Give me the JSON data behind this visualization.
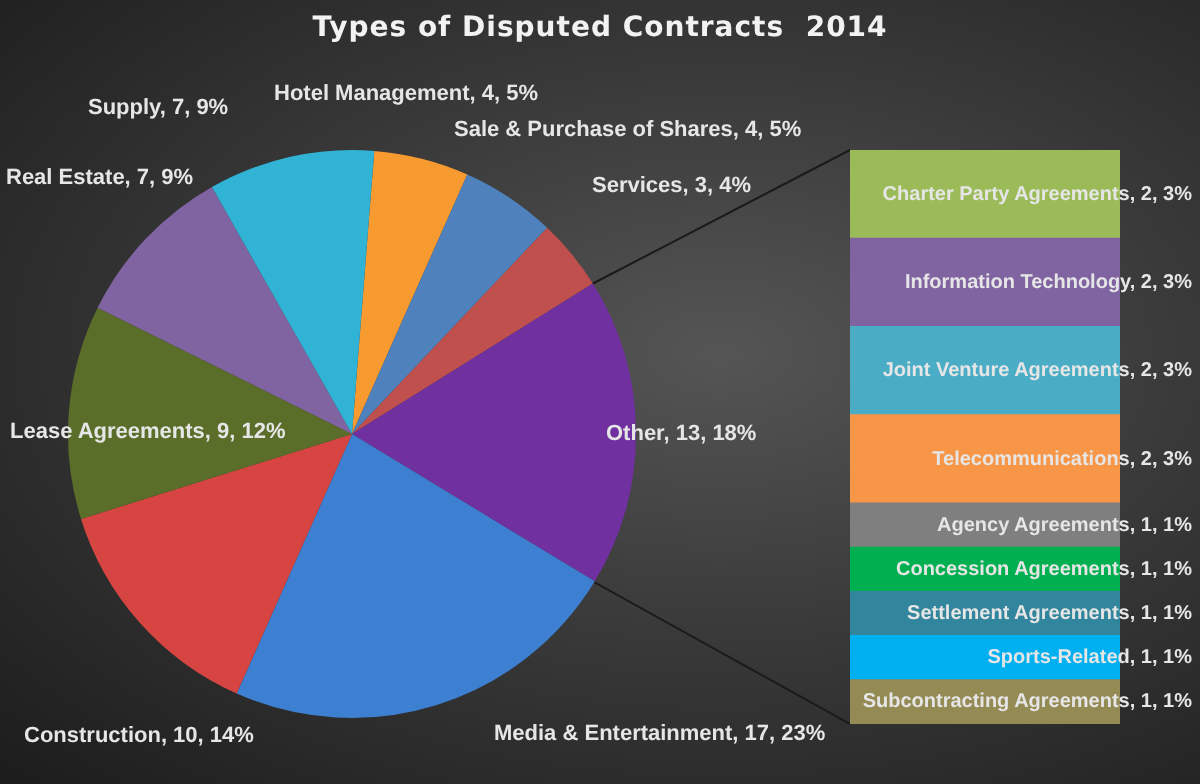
{
  "chart_data": [
    {
      "type": "pie",
      "title": "Types of Disputed Contracts  2014",
      "categories": [
        "Hotel Management",
        "Sale & Purchase of Shares",
        "Services",
        "Other",
        "Media & Entertainment",
        "Construction",
        "Lease Agreements",
        "Real Estate",
        "Supply"
      ],
      "values": [
        4,
        4,
        3,
        13,
        17,
        10,
        9,
        7,
        7
      ],
      "value_labels": [
        "4, 5%",
        "4, 5%",
        "3, 4%",
        "13, 18%",
        "17, 23%",
        "10, 14%",
        "9, 12%",
        "7, 9%",
        "7, 9%"
      ],
      "colors": [
        "#f79a30",
        "#4f81bd",
        "#c0504d",
        "#7030a0",
        "#3d7fd0",
        "#d64541",
        "#5a6e2a",
        "#8064a2",
        "#31b3d5"
      ]
    },
    {
      "type": "other",
      "values": [
        2,
        2,
        2,
        2,
        1,
        1,
        1,
        1,
        1
      ],
      "value_labels": [
        "Charter Party Agreements, 2, 3%",
        "Information Technology, 2, 3%",
        "Joint Venture Agreements, 2, 3%",
        "Telecommunications, 2, 3%",
        "Agency Agreements, 1, 1%",
        "Concession Agreements, 1, 1%",
        "Settlement Agreements, 1, 1%",
        "Sports-Related, 1, 1%",
        "Subcontracting Agreements, 1, 1%"
      ],
      "colors": [
        "#9bbb59",
        "#8064a2",
        "#4bacc6",
        "#f79646",
        "#7f7f7f",
        "#00b050",
        "#31859c",
        "#00b0f0",
        "#948a54"
      ]
    }
  ]
}
